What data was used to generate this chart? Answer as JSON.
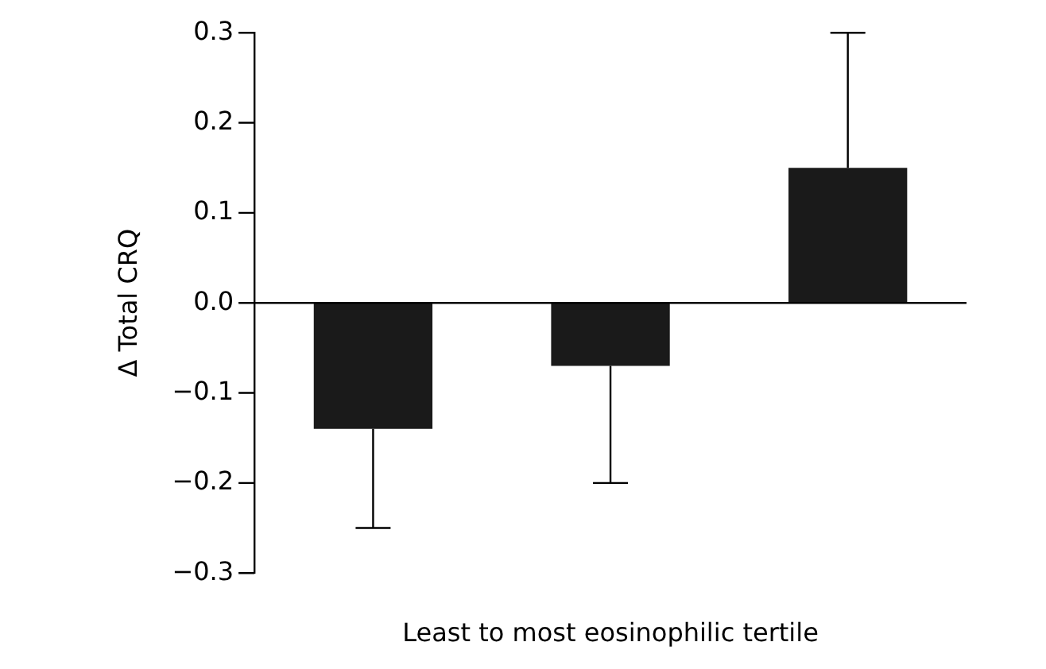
{
  "chart_data": {
    "type": "bar",
    "ylabel": "Δ Total CRQ",
    "xlabel": "Least to most eosinophilic tertile",
    "categories": [
      null,
      null,
      null
    ],
    "values": [
      -0.14,
      -0.07,
      0.15
    ],
    "color": "#1a1a1a",
    "errors": [
      [
        -0.25,
        -0.14
      ],
      [
        -0.2,
        -0.07
      ],
      [
        0.15,
        0.3
      ]
    ],
    "ylim": [
      -0.3,
      0.3
    ],
    "yticks": [
      {
        "value": -0.3,
        "label": "−0.3"
      },
      {
        "value": -0.2,
        "label": "−0.2"
      },
      {
        "value": -0.1,
        "label": "−0.1"
      },
      {
        "value": 0,
        "label": "0.0"
      },
      0.1,
      0.2,
      0.3
    ],
    "ref_lines": [
      {
        "axis": "y",
        "value": 0,
        "color": "#000000"
      }
    ],
    "grid": false,
    "legend": false
  }
}
